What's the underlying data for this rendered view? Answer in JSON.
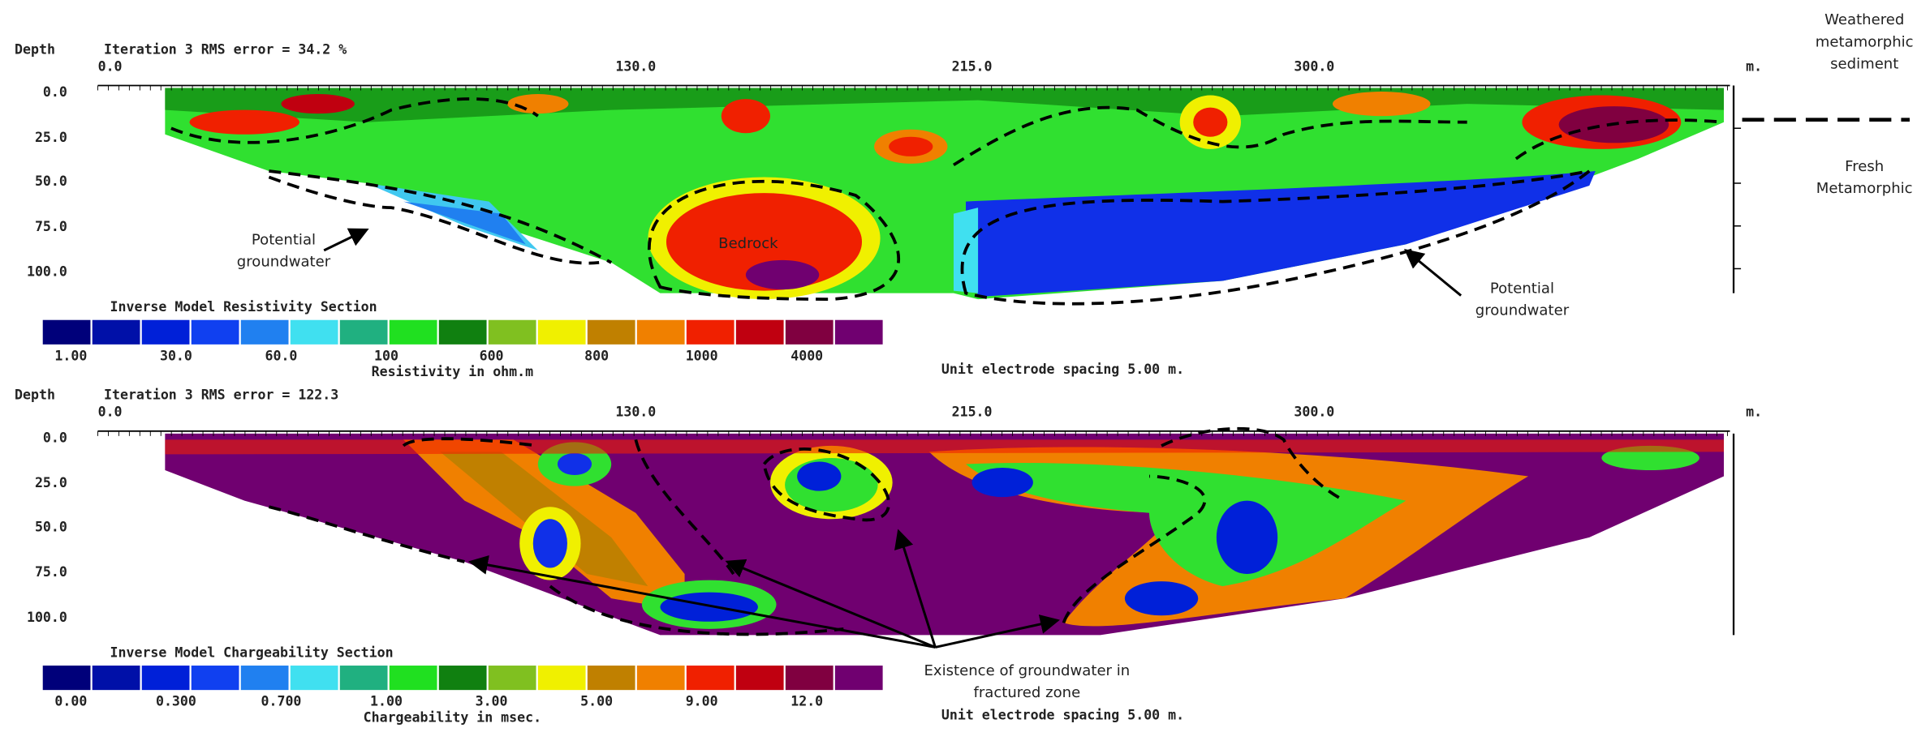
{
  "annotations": {
    "weathered": "Weathered metamorphic sediment",
    "fresh": "Fresh Metamorphic",
    "groundwater_left": "Potential groundwater",
    "groundwater_right": "Potential groundwater",
    "bedrock": "Bedrock",
    "fractured": "Existence of groundwater in fractured zone"
  },
  "legend_colors": [
    "#00007a",
    "#0010a8",
    "#0020d8",
    "#1040f0",
    "#2080f0",
    "#40e0f0",
    "#20b080",
    "#20e020",
    "#108010",
    "#80c020",
    "#f0f000",
    "#c08000",
    "#f08000",
    "#f02000",
    "#c00010",
    "#800040",
    "#700070"
  ],
  "panels": [
    {
      "depth_label": "Depth",
      "header": "Iteration 3 RMS error = 34.2 %",
      "x_labels": [
        "0.0",
        "130.0",
        "215.0",
        "300.0"
      ],
      "x_unit": "m.",
      "depth_ticks": [
        "0.0",
        "25.0",
        "50.0",
        "75.0",
        "100.0"
      ],
      "legend_title": "Inverse Model Resistivity Section",
      "legend_labels": [
        "1.00",
        "30.0",
        "60.0",
        "100",
        "600",
        "800",
        "1000",
        "4000"
      ],
      "unit_label": "Resistivity in ohm.m",
      "spacing_label": "Unit electrode spacing 5.00 m."
    },
    {
      "depth_label": "Depth",
      "header": "Iteration 3 RMS error = 122.3",
      "x_labels": [
        "0.0",
        "130.0",
        "215.0",
        "300.0"
      ],
      "x_unit": "m.",
      "depth_ticks": [
        "0.0",
        "25.0",
        "50.0",
        "75.0",
        "100.0"
      ],
      "legend_title": "Inverse Model Chargeability Section",
      "legend_labels": [
        "0.00",
        "0.300",
        "0.700",
        "1.00",
        "3.00",
        "5.00",
        "9.00",
        "12.0"
      ],
      "unit_label": "Chargeability in msec.",
      "spacing_label": "Unit electrode spacing 5.00 m."
    }
  ]
}
